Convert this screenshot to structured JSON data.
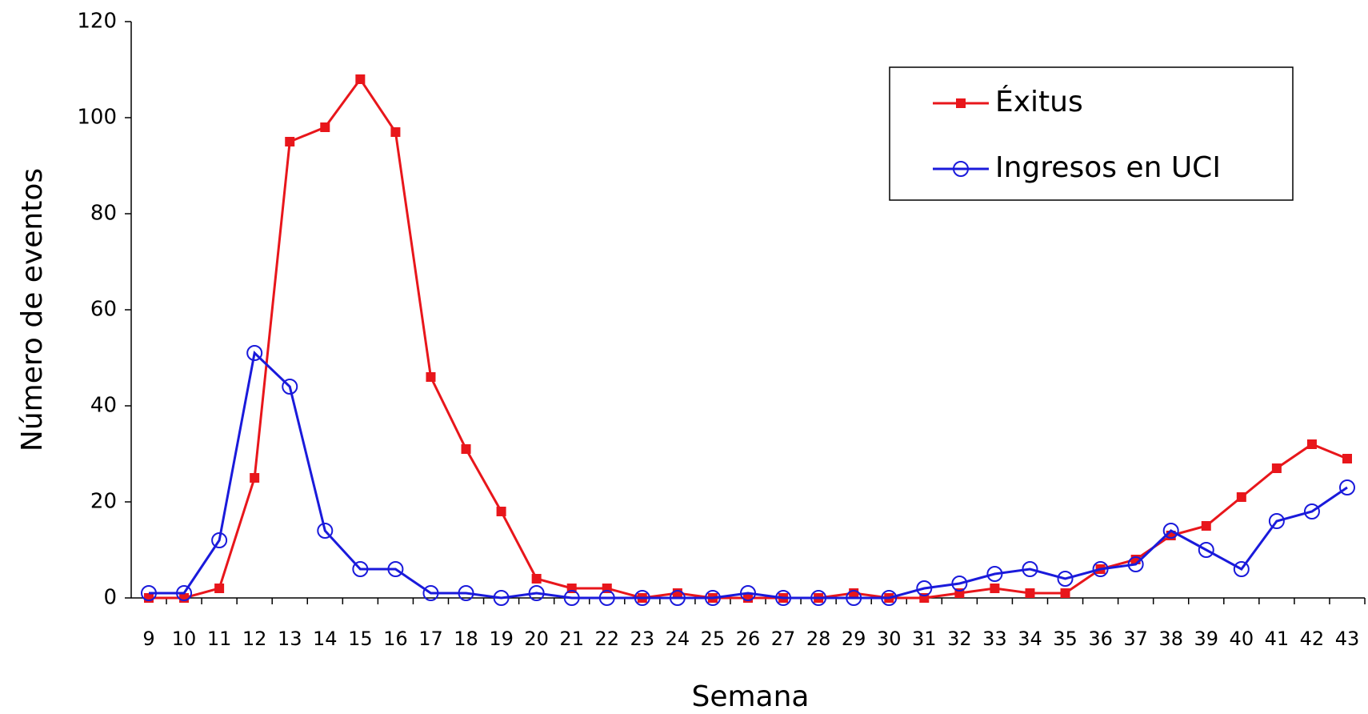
{
  "chart_data": {
    "type": "line",
    "x_label": "Semana",
    "y_label": "Número de eventos",
    "categories": [
      "9",
      "10",
      "11",
      "12",
      "13",
      "14",
      "15",
      "16",
      "17",
      "18",
      "19",
      "20",
      "21",
      "22",
      "23",
      "24",
      "25",
      "26",
      "27",
      "28",
      "29",
      "30",
      "31",
      "32",
      "33",
      "34",
      "35",
      "36",
      "37",
      "38",
      "39",
      "40",
      "41",
      "42",
      "43"
    ],
    "series": [
      {
        "name": "Éxitus",
        "color": "#e8161b",
        "marker": "square",
        "values": [
          0,
          0,
          2,
          25,
          95,
          98,
          108,
          97,
          46,
          31,
          18,
          4,
          2,
          2,
          0,
          1,
          0,
          0,
          0,
          0,
          1,
          0,
          0,
          1,
          2,
          1,
          1,
          6,
          8,
          13,
          15,
          21,
          27,
          32,
          29
        ]
      },
      {
        "name": "Ingresos en UCI",
        "color": "#1a1adb",
        "marker": "circle",
        "values": [
          1,
          1,
          12,
          51,
          44,
          14,
          6,
          6,
          1,
          1,
          0,
          1,
          0,
          0,
          0,
          0,
          0,
          1,
          0,
          0,
          0,
          0,
          2,
          3,
          5,
          6,
          4,
          6,
          7,
          14,
          10,
          6,
          16,
          18,
          23
        ]
      }
    ],
    "ylim": [
      0,
      120
    ],
    "yticks": [
      0,
      20,
      40,
      60,
      80,
      100,
      120
    ],
    "legend": "upper right"
  }
}
